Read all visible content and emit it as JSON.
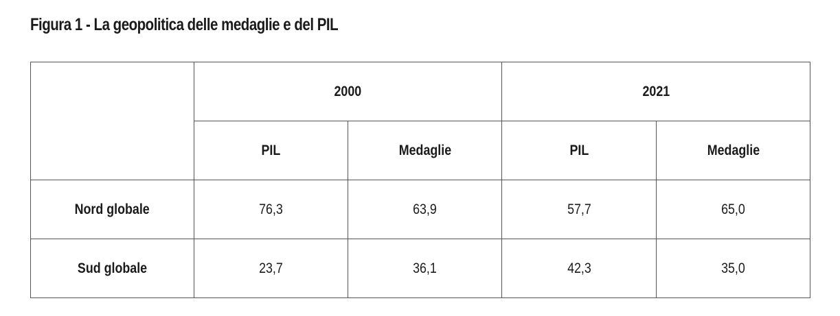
{
  "title": "Figura 1 - La geopolitica delle medaglie e del PIL",
  "table": {
    "groups": [
      "2000",
      "2021"
    ],
    "columns": [
      "PIL",
      "Medaglie",
      "PIL",
      "Medaglie"
    ],
    "rows": [
      [
        "Nord globale",
        "76,3",
        "63,9",
        "57,7",
        "65,0"
      ],
      [
        "Sud globale",
        "23,7",
        "36,1",
        "42,3",
        "35,0"
      ]
    ]
  }
}
